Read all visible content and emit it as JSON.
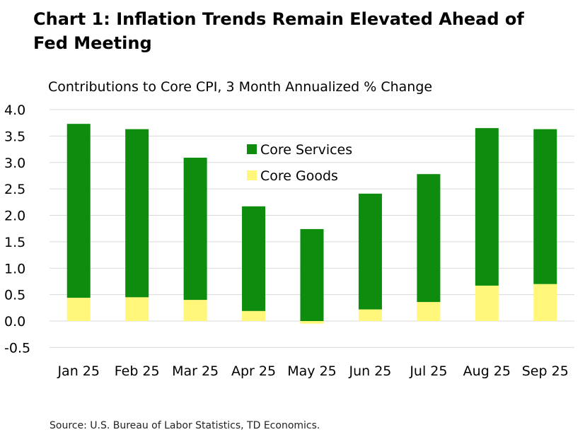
{
  "chart_data": {
    "type": "bar",
    "stacked": true,
    "title": "Chart 1: Inflation Trends Remain Elevated Ahead of Fed Meeting",
    "subtitle": "Contributions to Core CPI, 3 Month Annualized % Change",
    "source": "Source: U.S. Bureau of Labor Statistics, TD Economics.",
    "categories": [
      "Jan 25",
      "Feb 25",
      "Mar 25",
      "Apr 25",
      "May 25",
      "Jun 25",
      "Jul 25",
      "Aug 25",
      "Sep 25"
    ],
    "series": [
      {
        "name": "Core Goods",
        "color": "#fff67a",
        "values": [
          0.44,
          0.45,
          0.4,
          0.19,
          -0.05,
          0.22,
          0.36,
          0.67,
          0.7
        ]
      },
      {
        "name": "Core Services",
        "color": "#0d8c0d",
        "values": [
          3.29,
          3.18,
          2.69,
          1.98,
          1.74,
          2.19,
          2.42,
          2.98,
          2.93
        ]
      }
    ],
    "legend_order": [
      "Core Services",
      "Core Goods"
    ],
    "ylim": [
      -0.5,
      4.0
    ],
    "yticks": [
      "4.0",
      "3.5",
      "3.0",
      "2.5",
      "2.0",
      "1.5",
      "1.0",
      "0.5",
      "0.0",
      "-0.5"
    ],
    "grid": true,
    "legend_position": "top-center"
  }
}
